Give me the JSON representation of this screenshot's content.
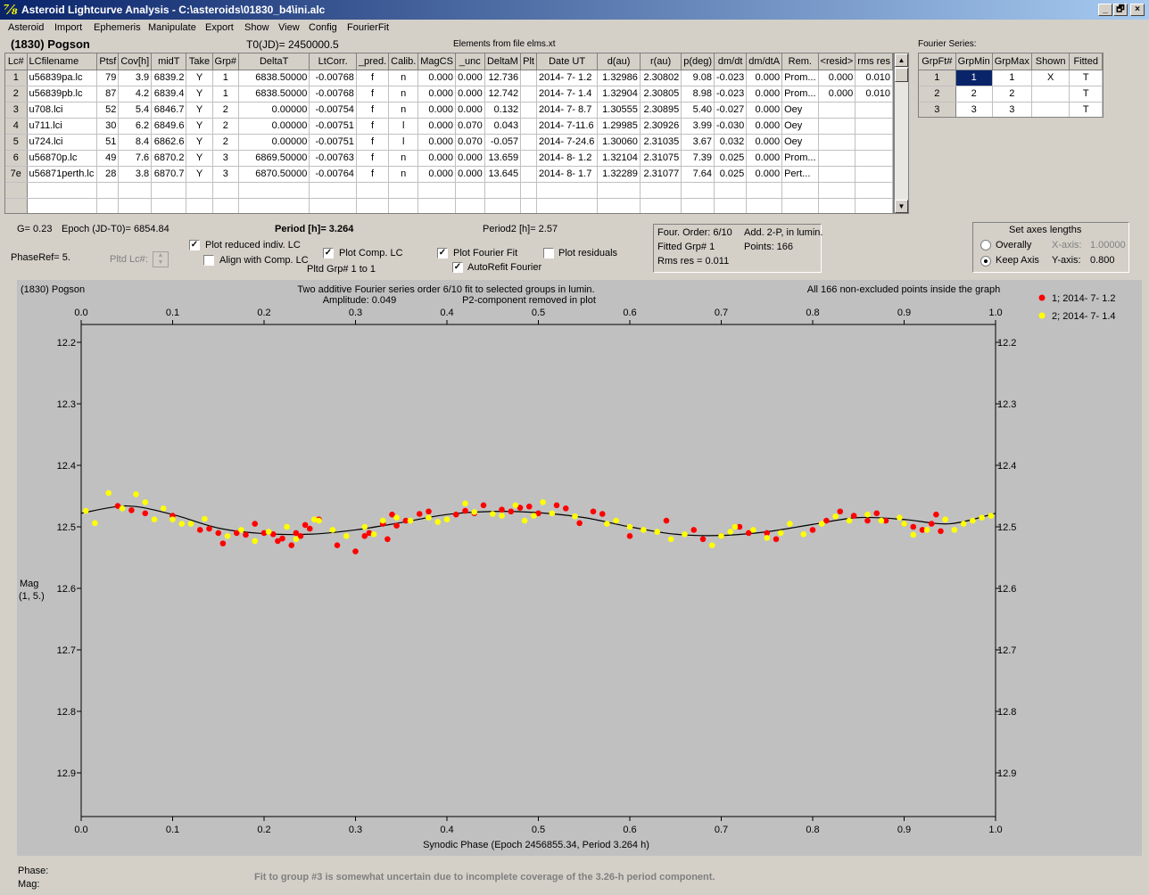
{
  "window": {
    "title": "Asteroid Lightcurve Analysis - C:\\asteroids\\01830_b4\\ini.alc",
    "controls": [
      "_",
      "🗗",
      "×"
    ]
  },
  "menu": [
    "Asteroid",
    "Import",
    "Ephemeris",
    "Manipulate",
    "Export",
    "Show",
    "View",
    "Config",
    "FourierFit"
  ],
  "header": {
    "asteroid": "(1830) Pogson",
    "t0": "T0(JD)= 2450000.5",
    "elements": "Elements from file elms.xt"
  },
  "lc_table": {
    "columns": [
      "Lc#",
      "LCfilename",
      "Ptsf",
      "Cov[h]",
      "midT",
      "Take",
      "Grp#",
      "DeltaT",
      "LtCorr.",
      "_pred.",
      "Calib.",
      "MagCS",
      "_unc",
      "DeltaM",
      "Plt",
      "Date UT",
      "d(au)",
      "r(au)",
      "p(deg)",
      "dm/dt",
      "dm/dtA",
      "Rem.",
      "<resid>",
      "rms res"
    ],
    "rows": [
      [
        "1",
        "u56839pa.lc",
        "79",
        "3.9",
        "6839.2",
        "Y",
        "1",
        "6838.50000",
        "-0.00768",
        "f",
        "n",
        "0.000",
        "0.000",
        "12.736",
        "",
        "2014- 7- 1.2",
        "1.32986",
        "2.30802",
        "9.08",
        "-0.023",
        "0.000",
        "Prom...",
        "0.000",
        "0.010"
      ],
      [
        "2",
        "u56839pb.lc",
        "87",
        "4.2",
        "6839.4",
        "Y",
        "1",
        "6838.50000",
        "-0.00768",
        "f",
        "n",
        "0.000",
        "0.000",
        "12.742",
        "",
        "2014- 7- 1.4",
        "1.32904",
        "2.30805",
        "8.98",
        "-0.023",
        "0.000",
        "Prom...",
        "0.000",
        "0.010"
      ],
      [
        "3",
        "u708.lci",
        "52",
        "5.4",
        "6846.7",
        "Y",
        "2",
        "0.00000",
        "-0.00754",
        "f",
        "n",
        "0.000",
        "0.000",
        "0.132",
        "",
        "2014- 7- 8.7",
        "1.30555",
        "2.30895",
        "5.40",
        "-0.027",
        "0.000",
        "Oey",
        "",
        ""
      ],
      [
        "4",
        "u711.lci",
        "30",
        "6.2",
        "6849.6",
        "Y",
        "2",
        "0.00000",
        "-0.00751",
        "f",
        "l",
        "0.000",
        "0.070",
        "0.043",
        "",
        "2014- 7-11.6",
        "1.29985",
        "2.30926",
        "3.99",
        "-0.030",
        "0.000",
        "Oey",
        "",
        ""
      ],
      [
        "5",
        "u724.lci",
        "51",
        "8.4",
        "6862.6",
        "Y",
        "2",
        "0.00000",
        "-0.00751",
        "f",
        "l",
        "0.000",
        "0.070",
        "-0.057",
        "",
        "2014- 7-24.6",
        "1.30060",
        "2.31035",
        "3.67",
        "0.032",
        "0.000",
        "Oey",
        "",
        ""
      ],
      [
        "6",
        "u56870p.lc",
        "49",
        "7.6",
        "6870.2",
        "Y",
        "3",
        "6869.50000",
        "-0.00763",
        "f",
        "n",
        "0.000",
        "0.000",
        "13.659",
        "",
        "2014- 8- 1.2",
        "1.32104",
        "2.31075",
        "7.39",
        "0.025",
        "0.000",
        "Prom...",
        "",
        ""
      ],
      [
        "7e",
        "u56871perth.lc",
        "28",
        "3.8",
        "6870.7",
        "Y",
        "3",
        "6870.50000",
        "-0.00764",
        "f",
        "n",
        "0.000",
        "0.000",
        "13.645",
        "",
        "2014- 8- 1.7",
        "1.32289",
        "2.31077",
        "7.64",
        "0.025",
        "0.000",
        "Pert...",
        "",
        ""
      ],
      [
        "",
        "",
        "",
        "",
        "",
        "",
        "",
        "",
        "",
        "",
        "",
        "",
        "",
        "",
        "",
        "",
        "",
        "",
        "",
        "",
        "",
        "",
        "",
        ""
      ],
      [
        "",
        "",
        "",
        "",
        "",
        "",
        "",
        "",
        "",
        "",
        "",
        "",
        "",
        "",
        "",
        "",
        "",
        "",
        "",
        "",
        "",
        "",
        "",
        ""
      ]
    ]
  },
  "fourier_series": {
    "label": "Fourier Series:",
    "columns": [
      "GrpFt#",
      "GrpMin",
      "GrpMax",
      "Shown",
      "Fitted"
    ],
    "rows": [
      [
        "1",
        "1",
        "1",
        "X",
        "T"
      ],
      [
        "2",
        "2",
        "2",
        "",
        "T"
      ],
      [
        "3",
        "3",
        "3",
        "",
        "T"
      ]
    ]
  },
  "info": {
    "g": "G= 0.23",
    "epoch": "Epoch (JD-T0)= 6854.84",
    "period": "Period [h]= 3.264",
    "period2": "Period2 [h]= 2.57",
    "phaseref": "PhaseRef= 5.",
    "pltd_lc": "Pltd Lc#:",
    "pltd_grp": "Pltd Grp#  1   to   1"
  },
  "options": {
    "plot_reduced": {
      "label": "Plot reduced indiv. LC",
      "checked": true
    },
    "align_comp": {
      "label": "Align with Comp. LC",
      "checked": false
    },
    "plot_comp": {
      "label": "Plot Comp. LC",
      "checked": true
    },
    "plot_fourier": {
      "label": "Plot Fourier Fit",
      "checked": true
    },
    "autorefit": {
      "label": "AutoRefit Fourier",
      "checked": true
    },
    "plot_residuals": {
      "label": "Plot residuals",
      "checked": false
    }
  },
  "fit_info": {
    "order": "Four. Order:  6/10",
    "add": "Add. 2-P, in lumin.",
    "fitted": "Fitted Grp# 1",
    "points": "Points: 166",
    "rms": "Rms res    = 0.011"
  },
  "axes_box": {
    "title": "Set axes lengths",
    "overall": "Overally",
    "keep": "Keep Axis",
    "xaxis_label": "X-axis:",
    "xaxis_val": "1.00000",
    "yaxis_label": "Y-axis:",
    "yaxis_val": "0.800",
    "selected": "keep"
  },
  "plot": {
    "name": "(1830) Pogson",
    "line1": "Two additive Fourier series order 6/10 fit to selected groups in lumin.",
    "line2": "Amplitude: 0.049",
    "line3": "P2-component removed in plot",
    "info_right": "All 166 non-excluded points inside the graph",
    "ylabel1": "Mag",
    "ylabel2": "(1, 5.)",
    "xlabel": "Synodic Phase (Epoch 2456855.34, Period 3.264 h)"
  },
  "status": {
    "phase": "Phase:",
    "mag": "Mag:",
    "message": "Fit to group #3 is somewhat uncertain due to incomplete coverage of the 3.26-h period component."
  },
  "chart_data": {
    "type": "scatter",
    "xlabel": "Synodic Phase (Epoch 2456855.34, Period 3.264 h)",
    "ylabel": "Mag",
    "xlim": [
      0,
      1
    ],
    "ylim": [
      12.2,
      12.98
    ],
    "y_inverted": true,
    "xticks": [
      "0.0",
      "0.1",
      "0.2",
      "0.3",
      "0.4",
      "0.5",
      "0.6",
      "0.7",
      "0.8",
      "0.9",
      "1.0"
    ],
    "yticks": [
      "12.2",
      "12.3",
      "12.4",
      "12.5",
      "12.6",
      "12.7",
      "12.8",
      "12.9"
    ],
    "legend_position": "right, outside",
    "series": [
      {
        "name": "1; 2014- 7- 1.2",
        "color": "#ff0000",
        "x": [
          0.04,
          0.055,
          0.07,
          0.1,
          0.13,
          0.14,
          0.15,
          0.155,
          0.17,
          0.18,
          0.19,
          0.2,
          0.21,
          0.215,
          0.22,
          0.23,
          0.235,
          0.24,
          0.245,
          0.25,
          0.26,
          0.28,
          0.3,
          0.31,
          0.315,
          0.33,
          0.335,
          0.34,
          0.345,
          0.355,
          0.37,
          0.38,
          0.41,
          0.42,
          0.43,
          0.44,
          0.46,
          0.47,
          0.48,
          0.49,
          0.5,
          0.52,
          0.53,
          0.545,
          0.56,
          0.57,
          0.6,
          0.64,
          0.67,
          0.68,
          0.7,
          0.72,
          0.73,
          0.75,
          0.76,
          0.8,
          0.815,
          0.83,
          0.845,
          0.86,
          0.87,
          0.88,
          0.9,
          0.91,
          0.92,
          0.93,
          0.935,
          0.94
        ],
        "y": [
          12.466,
          12.473,
          12.478,
          12.482,
          12.505,
          12.503,
          12.51,
          12.527,
          12.51,
          12.513,
          12.495,
          12.51,
          12.512,
          12.523,
          12.519,
          12.53,
          12.51,
          12.515,
          12.497,
          12.503,
          12.488,
          12.53,
          12.54,
          12.515,
          12.51,
          12.495,
          12.52,
          12.48,
          12.498,
          12.49,
          12.479,
          12.475,
          12.48,
          12.474,
          12.478,
          12.465,
          12.472,
          12.475,
          12.469,
          12.467,
          12.478,
          12.465,
          12.47,
          12.494,
          12.475,
          12.479,
          12.515,
          12.49,
          12.505,
          12.52,
          12.515,
          12.5,
          12.51,
          12.51,
          12.52,
          12.505,
          12.49,
          12.475,
          12.482,
          12.49,
          12.478,
          12.49,
          12.495,
          12.5,
          12.505,
          12.495,
          12.48,
          12.507
        ],
        "y_note": "values read approximately from plot"
      },
      {
        "name": "2; 2014- 7- 1.4",
        "color": "#ffff00",
        "x": [
          0.005,
          0.015,
          0.03,
          0.045,
          0.06,
          0.07,
          0.08,
          0.09,
          0.1,
          0.11,
          0.12,
          0.135,
          0.16,
          0.175,
          0.19,
          0.205,
          0.225,
          0.235,
          0.255,
          0.26,
          0.275,
          0.29,
          0.31,
          0.32,
          0.33,
          0.345,
          0.36,
          0.38,
          0.39,
          0.4,
          0.42,
          0.43,
          0.45,
          0.46,
          0.475,
          0.485,
          0.495,
          0.505,
          0.515,
          0.54,
          0.575,
          0.585,
          0.6,
          0.615,
          0.63,
          0.645,
          0.66,
          0.69,
          0.7,
          0.71,
          0.715,
          0.735,
          0.75,
          0.765,
          0.775,
          0.79,
          0.81,
          0.825,
          0.84,
          0.86,
          0.875,
          0.895,
          0.9,
          0.91,
          0.925,
          0.945,
          0.955,
          0.965,
          0.975,
          0.985,
          0.995
        ],
        "y": [
          12.474,
          12.494,
          12.445,
          12.47,
          12.447,
          12.46,
          12.488,
          12.47,
          12.488,
          12.495,
          12.495,
          12.487,
          12.515,
          12.505,
          12.523,
          12.508,
          12.5,
          12.52,
          12.488,
          12.49,
          12.505,
          12.515,
          12.5,
          12.512,
          12.49,
          12.485,
          12.49,
          12.485,
          12.492,
          12.488,
          12.462,
          12.476,
          12.479,
          12.482,
          12.465,
          12.49,
          12.482,
          12.46,
          12.478,
          12.483,
          12.495,
          12.49,
          12.5,
          12.505,
          12.508,
          12.52,
          12.512,
          12.53,
          12.515,
          12.508,
          12.5,
          12.505,
          12.518,
          12.51,
          12.495,
          12.512,
          12.495,
          12.483,
          12.49,
          12.48,
          12.49,
          12.485,
          12.495,
          12.513,
          12.505,
          12.488,
          12.505,
          12.495,
          12.49,
          12.485,
          12.482
        ],
        "y_note": "values read approximately from plot"
      }
    ],
    "fit_curve": {
      "color": "#000000",
      "description": "Fourier fit curve",
      "x": [
        0,
        0.05,
        0.1,
        0.15,
        0.2,
        0.25,
        0.3,
        0.35,
        0.4,
        0.45,
        0.5,
        0.55,
        0.6,
        0.65,
        0.7,
        0.75,
        0.8,
        0.85,
        0.9,
        0.95,
        1.0
      ],
      "y": [
        12.478,
        12.466,
        12.48,
        12.502,
        12.511,
        12.512,
        12.505,
        12.493,
        12.48,
        12.475,
        12.477,
        12.485,
        12.5,
        12.512,
        12.514,
        12.508,
        12.496,
        12.485,
        12.488,
        12.495,
        12.478
      ]
    }
  }
}
